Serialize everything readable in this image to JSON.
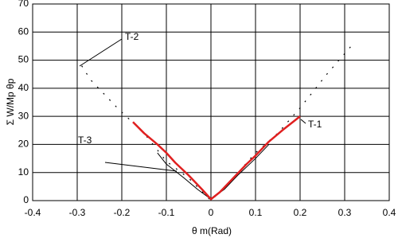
{
  "chart_data": {
    "type": "line",
    "xlabel": "θ m(Rad)",
    "ylabel": "Σ W/Mp θp",
    "annotations": [
      "T-1",
      "T-2",
      "T-3"
    ],
    "series": [
      {
        "color": "#000000",
        "style": "dashed",
        "x": [
          -0.29,
          -0.27,
          -0.21,
          -0.15,
          -0.1,
          -0.05,
          0,
          0.05,
          0.1,
          0.15,
          0.2,
          0.26,
          0.32
        ],
        "values": [
          48,
          43,
          33,
          24,
          14,
          8,
          0,
          8,
          17,
          24,
          33,
          45,
          56
        ]
      },
      {
        "color": "#000000",
        "style": "solid",
        "x": [
          -0.12,
          -0.1,
          -0.06,
          -0.03,
          0,
          0.03,
          0.06,
          0.1,
          0.13
        ],
        "values": [
          17,
          13,
          8,
          4,
          0.5,
          4,
          9,
          15,
          20
        ]
      },
      {
        "color": "#e02020",
        "style": "thick",
        "x": [
          -0.175,
          -0.15,
          -0.12,
          -0.1,
          -0.08,
          -0.05,
          -0.02,
          0,
          0.02,
          0.05,
          0.08,
          0.1,
          0.13,
          0.16,
          0.2
        ],
        "values": [
          28,
          24,
          20,
          17,
          13.5,
          9,
          4,
          0.5,
          3,
          8,
          13,
          16,
          21,
          25,
          30
        ]
      }
    ],
    "xlim": [
      -0.4,
      0.4
    ],
    "xticks": [
      -0.4,
      -0.3,
      -0.2,
      -0.1,
      0,
      0.1,
      0.2,
      0.3,
      0.4
    ],
    "ylim": [
      0,
      70
    ],
    "yticks": [
      0,
      10,
      20,
      30,
      40,
      50,
      60,
      70
    ],
    "grid": true
  }
}
